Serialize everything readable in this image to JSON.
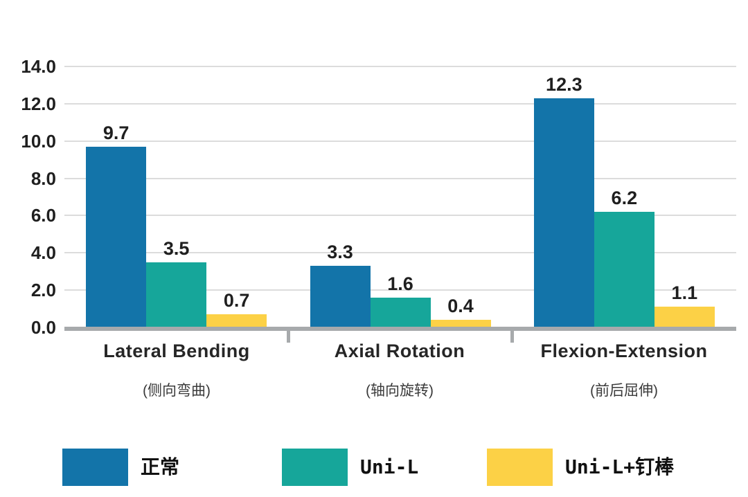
{
  "chart_data": {
    "type": "bar",
    "title": "",
    "categories": [
      {
        "label": "Lateral Bending",
        "sublabel": "(侧向弯曲)"
      },
      {
        "label": "Axial Rotation",
        "sublabel": "(轴向旋转)"
      },
      {
        "label": "Flexion-Extension",
        "sublabel": "(前后屈伸)"
      }
    ],
    "series": [
      {
        "name": "正常",
        "color": "#1374A9",
        "values": [
          9.7,
          3.3,
          12.3
        ]
      },
      {
        "name": "Uni-L",
        "color": "#16A69A",
        "values": [
          3.5,
          1.6,
          6.2
        ]
      },
      {
        "name": "Uni-L+钉棒",
        "color": "#FCD146",
        "values": [
          0.7,
          0.4,
          1.1
        ]
      }
    ],
    "ylim": [
      0,
      14
    ],
    "yticks": [
      {
        "value": 14,
        "label": "14.0"
      },
      {
        "value": 12,
        "label": "12.0"
      },
      {
        "value": 10,
        "label": "10.0"
      },
      {
        "value": 8,
        "label": "8.0"
      },
      {
        "value": 6,
        "label": "6.0"
      },
      {
        "value": 4,
        "label": "4.0"
      },
      {
        "value": 2,
        "label": "2.0"
      },
      {
        "value": 0,
        "label": "0.0"
      }
    ],
    "value_label_format": "0.0",
    "grid": true,
    "legend_position": "bottom",
    "style": {
      "gridline_color": "#DCDCDC",
      "axis_color": "#A7AAAC",
      "text_color": "#1F1F1F",
      "background": "#FFFFFF"
    }
  }
}
